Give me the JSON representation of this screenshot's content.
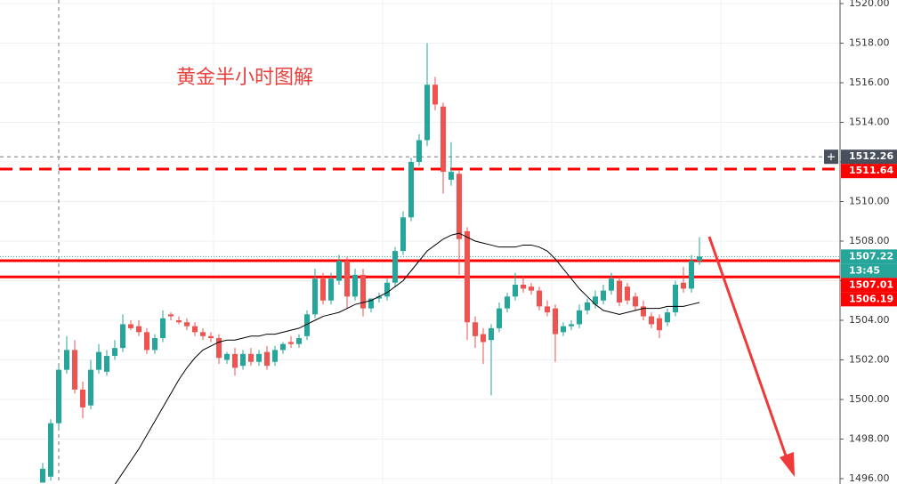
{
  "chart_data": {
    "type": "candlestick",
    "title": "黄金半小时图解",
    "up_color": "#26a69a",
    "down_color": "#ef5350",
    "open": [
      1495.8,
      1496.1,
      1498.8,
      1501.5,
      1502.5,
      1500.5,
      1499.7,
      1501.5,
      1501.4,
      1502.2,
      1502.6,
      1503.8,
      1503.7,
      1503.4,
      1502.5,
      1503.1,
      1504.3,
      1504.0,
      1503.9,
      1503.7,
      1503.4,
      1503.2,
      1503.1,
      1502.0,
      1502.3,
      1501.7,
      1502.3,
      1501.9,
      1502.4,
      1501.9,
      1502.5,
      1502.9,
      1502.8,
      1503.2,
      1504.3,
      1506.1,
      1505.0,
      1506.0,
      1507.0,
      1505.2,
      1506.3,
      1504.6,
      1505.1,
      1505.2,
      1505.9,
      1507.5,
      1509.2,
      1512.0,
      1513.1,
      1515.9,
      1514.8,
      1511.1,
      1511.4,
      1508.5,
      1503.9,
      1503.3,
      1503.0,
      1503.6,
      1504.6,
      1505.2,
      1505.8,
      1505.7,
      1505.5,
      1504.7,
      1504.6,
      1503.4,
      1503.7,
      1503.8,
      1504.5,
      1504.8,
      1505.0,
      1505.5,
      1506.0,
      1505.7,
      1505.2,
      1504.7,
      1504.2,
      1504.1,
      1503.9,
      1504.4,
      1505.9,
      1505.6,
      1507.0
    ],
    "high": [
      1496.8,
      1499.0,
      1501.7,
      1503.2,
      1503.0,
      1500.9,
      1502.0,
      1502.8,
      1502.5,
      1503.0,
      1504.3,
      1504.0,
      1504.0,
      1503.6,
      1503.3,
      1504.5,
      1504.4,
      1504.2,
      1504.1,
      1503.9,
      1503.6,
      1503.4,
      1503.3,
      1502.4,
      1502.6,
      1502.5,
      1502.6,
      1502.5,
      1502.7,
      1502.7,
      1502.9,
      1503.2,
      1503.3,
      1504.5,
      1506.6,
      1506.4,
      1506.4,
      1507.3,
      1507.2,
      1506.6,
      1506.6,
      1505.0,
      1505.4,
      1506.1,
      1507.7,
      1509.5,
      1512.2,
      1513.4,
      1518.0,
      1516.3,
      1515.0,
      1513.0,
      1511.6,
      1508.7,
      1504.2,
      1503.6,
      1503.8,
      1504.9,
      1505.4,
      1506.4,
      1506.2,
      1505.9,
      1505.7,
      1505.0,
      1504.8,
      1503.9,
      1504.0,
      1504.8,
      1505.1,
      1505.5,
      1505.8,
      1506.4,
      1506.2,
      1505.9,
      1505.4,
      1505.0,
      1504.4,
      1504.3,
      1504.6,
      1506.0,
      1506.7,
      1507.3,
      1508.2
    ],
    "low": [
      1495.8,
      1495.9,
      1498.5,
      1501.3,
      1500.3,
      1499.05,
      1499.5,
      1501.3,
      1501.2,
      1502.0,
      1502.4,
      1503.5,
      1503.2,
      1502.3,
      1502.3,
      1502.9,
      1504.0,
      1503.8,
      1503.5,
      1503.2,
      1503.0,
      1502.9,
      1501.8,
      1501.8,
      1501.2,
      1501.5,
      1501.7,
      1501.7,
      1501.5,
      1501.7,
      1502.3,
      1502.6,
      1502.6,
      1503.0,
      1504.1,
      1504.8,
      1504.8,
      1505.8,
      1504.6,
      1505.0,
      1504.2,
      1504.4,
      1504.9,
      1505.0,
      1505.7,
      1507.3,
      1509.0,
      1511.8,
      1512.8,
      1514.6,
      1510.4,
      1510.8,
      1506.3,
      1503.0,
      1502.6,
      1501.8,
      1500.2,
      1503.4,
      1504.4,
      1505.0,
      1505.4,
      1505.3,
      1504.5,
      1504.2,
      1501.9,
      1503.2,
      1503.5,
      1503.6,
      1504.3,
      1504.6,
      1504.8,
      1505.3,
      1504.7,
      1504.8,
      1504.5,
      1504.0,
      1503.6,
      1503.1,
      1503.7,
      1504.2,
      1505.4,
      1505.4,
      1506.8
    ],
    "close": [
      1496.5,
      1498.8,
      1501.5,
      1502.5,
      1500.5,
      1499.6,
      1501.5,
      1502.4,
      1502.2,
      1502.6,
      1503.8,
      1503.6,
      1503.4,
      1502.5,
      1503.1,
      1504.1,
      1504.2,
      1503.9,
      1503.7,
      1503.4,
      1503.2,
      1503.1,
      1502.1,
      1502.3,
      1501.6,
      1502.3,
      1501.9,
      1502.3,
      1501.7,
      1502.5,
      1502.8,
      1502.8,
      1503.1,
      1504.3,
      1506.1,
      1505.0,
      1506.1,
      1507.0,
      1505.2,
      1506.3,
      1504.6,
      1505.1,
      1505.2,
      1505.9,
      1507.5,
      1509.2,
      1512.0,
      1513.1,
      1515.9,
      1514.9,
      1511.5,
      1511.5,
      1508.1,
      1503.9,
      1503.2,
      1502.9,
      1503.6,
      1504.6,
      1505.2,
      1505.8,
      1505.6,
      1505.5,
      1504.7,
      1504.4,
      1503.3,
      1503.7,
      1503.8,
      1504.5,
      1504.9,
      1505.2,
      1505.5,
      1506.1,
      1504.9,
      1505.0,
      1504.7,
      1504.2,
      1503.8,
      1503.5,
      1504.4,
      1505.8,
      1505.6,
      1507.0,
      1507.22
    ],
    "ma": {
      "color": "#000000",
      "values": [
        null,
        null,
        null,
        null,
        null,
        null,
        null,
        null,
        null,
        1495.7,
        1496.3,
        1496.9,
        1497.5,
        1498.2,
        1498.9,
        1499.6,
        1500.3,
        1501.0,
        1501.6,
        1502.1,
        1502.5,
        1502.7,
        1502.9,
        1503.0,
        1503.0,
        1503.1,
        1503.2,
        1503.2,
        1503.3,
        1503.3,
        1503.4,
        1503.5,
        1503.6,
        1503.8,
        1504.0,
        1504.2,
        1504.3,
        1504.4,
        1504.6,
        1504.8,
        1504.9,
        1505.0,
        1505.2,
        1505.4,
        1505.7,
        1506.0,
        1506.5,
        1507.0,
        1507.5,
        1507.8,
        1508.1,
        1508.3,
        1508.4,
        1508.2,
        1508.0,
        1507.9,
        1507.8,
        1507.7,
        1507.7,
        1507.7,
        1507.8,
        1507.8,
        1507.7,
        1507.5,
        1507.1,
        1506.6,
        1506.1,
        1505.6,
        1505.2,
        1504.8,
        1504.5,
        1504.4,
        1504.3,
        1504.4,
        1504.5,
        1504.6,
        1504.6,
        1504.6,
        1504.7,
        1504.7,
        1504.7,
        1504.8,
        1504.9
      ]
    },
    "ylim": [
      1495.73,
      1520.18
    ],
    "yticks": [
      {
        "value": 1496,
        "label": "1496.00"
      },
      {
        "value": 1498,
        "label": "1498.00"
      },
      {
        "value": 1500,
        "label": "1500.00"
      },
      {
        "value": 1502,
        "label": "1502.00"
      },
      {
        "value": 1504,
        "label": "1504.00"
      },
      {
        "value": 1506,
        "label": "1506.00"
      },
      {
        "value": 1508,
        "label": "1508.00"
      },
      {
        "value": 1510,
        "label": "1510.00"
      },
      {
        "value": 1512,
        "label": "1512.00"
      },
      {
        "value": 1514,
        "label": "1514.00"
      },
      {
        "value": 1516,
        "label": "1516.00"
      },
      {
        "value": 1518,
        "label": "1518.00"
      },
      {
        "value": 1520,
        "label": "1520.00"
      }
    ],
    "grid": true,
    "crosshair_price": 1512.26,
    "last_price": 1507.22,
    "countdown": "13:45",
    "levels": [
      {
        "value": 1511.64,
        "color": "#ff0000",
        "style": "dashed"
      },
      {
        "value": 1507.01,
        "color": "#ff0000",
        "style": "solid"
      },
      {
        "value": 1506.19,
        "color": "#ff0000",
        "style": "solid"
      }
    ]
  }
}
